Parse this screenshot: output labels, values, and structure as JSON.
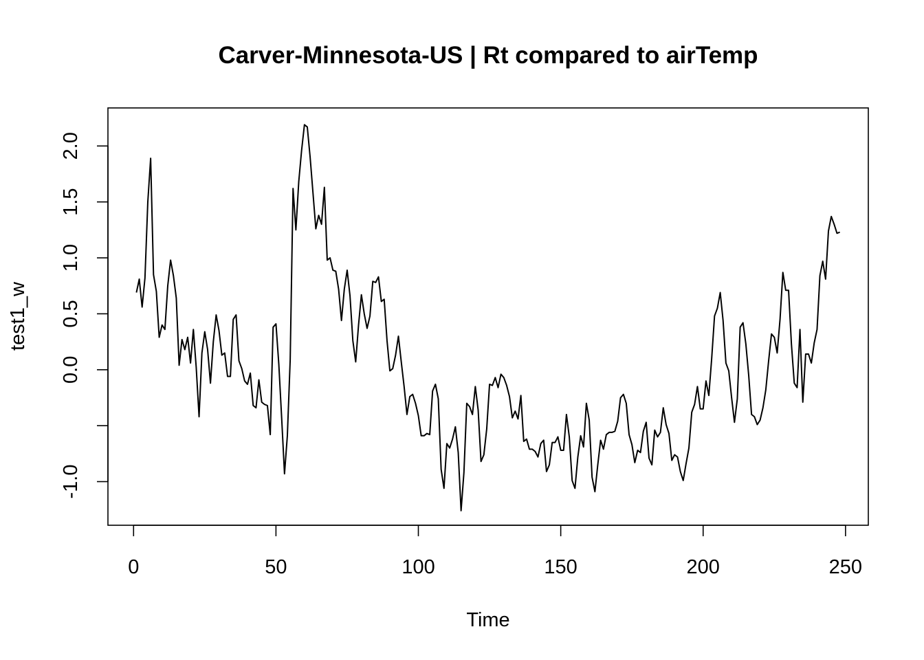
{
  "chart_data": {
    "type": "line",
    "title": "Carver-Minnesota-US | Rt compared to airTemp",
    "xlabel": "Time",
    "ylabel": "test1_w",
    "xlim": [
      -9,
      258
    ],
    "ylim": [
      -1.39,
      2.34
    ],
    "x_ticks": [
      0,
      50,
      100,
      150,
      200,
      250
    ],
    "x_tick_labels": [
      "0",
      "50",
      "100",
      "150",
      "200",
      "250"
    ],
    "y_ticks": [
      -1.0,
      -0.5,
      0.0,
      0.5,
      1.0,
      1.5,
      2.0
    ],
    "y_tick_labels": [
      "-1.0",
      "",
      "0.0",
      "0.5",
      "1.0",
      "1.5",
      "2.0"
    ],
    "grid": false,
    "legend": "none",
    "line_color": "#000000",
    "series": [
      {
        "x": [
          1,
          2,
          3,
          4,
          5,
          6,
          7,
          8,
          9,
          10,
          11,
          12,
          13,
          14,
          15,
          16,
          17,
          18,
          19,
          20,
          21,
          22,
          23,
          24,
          25,
          26,
          27,
          28,
          29,
          30,
          31,
          32,
          33,
          34,
          35,
          36,
          37,
          38,
          39,
          40,
          41,
          42,
          43,
          44,
          45,
          46,
          47,
          48,
          49,
          50,
          51,
          52,
          53,
          54,
          55,
          56,
          57,
          58,
          59,
          60,
          61,
          62,
          63,
          64,
          65,
          66,
          67,
          68,
          69,
          70,
          71,
          72,
          73,
          74,
          75,
          76,
          77,
          78,
          79,
          80,
          81,
          82,
          83,
          84,
          85,
          86,
          87,
          88,
          89,
          90,
          91,
          92,
          93,
          94,
          95,
          96,
          97,
          98,
          99,
          100,
          101,
          102,
          103,
          104,
          105,
          106,
          107,
          108,
          109,
          110,
          111,
          112,
          113,
          114,
          115,
          116,
          117,
          118,
          119,
          120,
          121,
          122,
          123,
          124,
          125,
          126,
          127,
          128,
          129,
          130,
          131,
          132,
          133,
          134,
          135,
          136,
          137,
          138,
          139,
          140,
          141,
          142,
          143,
          144,
          145,
          146,
          147,
          148,
          149,
          150,
          151,
          152,
          153,
          154,
          155,
          156,
          157,
          158,
          159,
          160,
          161,
          162,
          163,
          164,
          165,
          166,
          167,
          168,
          169,
          170,
          171,
          172,
          173,
          174,
          175,
          176,
          177,
          178,
          179,
          180,
          181,
          182,
          183,
          184,
          185,
          186,
          187,
          188,
          189,
          190,
          191,
          192,
          193,
          194,
          195,
          196,
          197,
          198,
          199,
          200,
          201,
          202,
          203,
          204,
          205,
          206,
          207,
          208,
          209,
          210,
          211,
          212,
          213,
          214,
          215,
          216,
          217,
          218,
          219,
          220,
          221,
          222,
          223,
          224,
          225,
          226,
          227,
          228,
          229,
          230,
          231,
          232,
          233,
          234,
          235,
          236,
          237,
          238,
          239,
          240,
          241,
          242,
          243,
          244,
          245,
          246,
          247,
          248
        ],
        "values": [
          0.69,
          0.81,
          0.56,
          0.82,
          1.5,
          1.89,
          0.85,
          0.7,
          0.29,
          0.4,
          0.36,
          0.75,
          0.98,
          0.84,
          0.64,
          0.04,
          0.27,
          0.18,
          0.29,
          0.06,
          0.36,
          0.02,
          -0.42,
          0.15,
          0.34,
          0.18,
          -0.12,
          0.25,
          0.49,
          0.35,
          0.13,
          0.15,
          -0.06,
          -0.06,
          0.45,
          0.49,
          0.08,
          0.01,
          -0.1,
          -0.13,
          -0.03,
          -0.32,
          -0.34,
          -0.09,
          -0.29,
          -0.31,
          -0.32,
          -0.58,
          0.38,
          0.41,
          0.05,
          -0.43,
          -0.93,
          -0.59,
          0.09,
          1.62,
          1.25,
          1.68,
          1.96,
          2.19,
          2.17,
          1.9,
          1.58,
          1.26,
          1.38,
          1.3,
          1.63,
          0.98,
          1.0,
          0.89,
          0.88,
          0.72,
          0.44,
          0.72,
          0.89,
          0.66,
          0.26,
          0.07,
          0.4,
          0.67,
          0.5,
          0.37,
          0.48,
          0.79,
          0.78,
          0.83,
          0.61,
          0.63,
          0.26,
          -0.01,
          0.01,
          0.13,
          0.3,
          0.07,
          -0.15,
          -0.4,
          -0.24,
          -0.22,
          -0.3,
          -0.41,
          -0.59,
          -0.59,
          -0.57,
          -0.58,
          -0.19,
          -0.13,
          -0.26,
          -0.89,
          -1.06,
          -0.66,
          -0.7,
          -0.62,
          -0.51,
          -0.74,
          -1.26,
          -0.92,
          -0.3,
          -0.33,
          -0.4,
          -0.15,
          -0.36,
          -0.82,
          -0.76,
          -0.53,
          -0.13,
          -0.14,
          -0.07,
          -0.16,
          -0.04,
          -0.07,
          -0.14,
          -0.24,
          -0.43,
          -0.37,
          -0.44,
          -0.23,
          -0.64,
          -0.62,
          -0.71,
          -0.71,
          -0.73,
          -0.78,
          -0.66,
          -0.63,
          -0.91,
          -0.85,
          -0.65,
          -0.65,
          -0.6,
          -0.72,
          -0.72,
          -0.4,
          -0.6,
          -0.99,
          -1.06,
          -0.78,
          -0.59,
          -0.69,
          -0.3,
          -0.45,
          -0.96,
          -1.09,
          -0.85,
          -0.63,
          -0.71,
          -0.58,
          -0.56,
          -0.56,
          -0.55,
          -0.46,
          -0.25,
          -0.22,
          -0.3,
          -0.58,
          -0.67,
          -0.83,
          -0.72,
          -0.74,
          -0.55,
          -0.47,
          -0.79,
          -0.85,
          -0.54,
          -0.6,
          -0.56,
          -0.34,
          -0.49,
          -0.57,
          -0.81,
          -0.76,
          -0.78,
          -0.91,
          -0.99,
          -0.84,
          -0.7,
          -0.38,
          -0.31,
          -0.15,
          -0.35,
          -0.35,
          -0.1,
          -0.23,
          0.1,
          0.48,
          0.55,
          0.69,
          0.44,
          0.06,
          -0.01,
          -0.25,
          -0.47,
          -0.26,
          0.38,
          0.42,
          0.23,
          -0.05,
          -0.4,
          -0.42,
          -0.49,
          -0.45,
          -0.34,
          -0.18,
          0.08,
          0.32,
          0.29,
          0.15,
          0.45,
          0.87,
          0.71,
          0.71,
          0.23,
          -0.12,
          -0.16,
          0.36,
          -0.29,
          0.14,
          0.14,
          0.06,
          0.24,
          0.36,
          0.84,
          0.97,
          0.81,
          1.24,
          1.37,
          1.3,
          1.22,
          1.23
        ]
      }
    ]
  }
}
